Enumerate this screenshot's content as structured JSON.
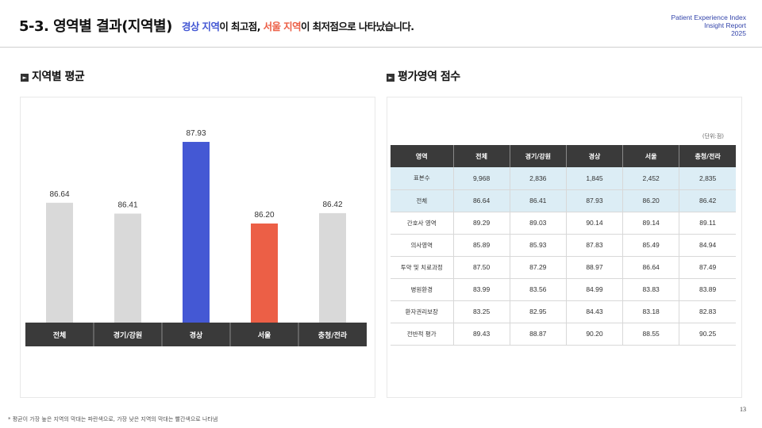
{
  "header": {
    "title": "5-3. 영역별 결과(지역별)",
    "subtitle_part1": "경상 지역",
    "subtitle_part2": "이 최고점, ",
    "subtitle_part3": "서울 지역",
    "subtitle_part4": "이 최저점으로 나타났습니다.",
    "report_line1": "Patient Experience Index",
    "report_line2": "Insight Report",
    "report_line3": "2025"
  },
  "left_section": {
    "title": "지역별 평균"
  },
  "right_section": {
    "title": "평가영역 점수",
    "unit": "(단위:점)"
  },
  "colors": {
    "bar_default": "#d9d9d9",
    "bar_highest": "#4458d4",
    "bar_lowest": "#ec5f46",
    "label_bg": "#3a3a3a",
    "highlight_row": "#dcedf5"
  },
  "chart_data": {
    "type": "bar",
    "categories": [
      "전체",
      "경기/강원",
      "경상",
      "서울",
      "충청/전라"
    ],
    "values": [
      86.64,
      86.41,
      87.93,
      86.2,
      86.42
    ],
    "data_labels": [
      "86.64",
      "86.41",
      "87.93",
      "86.20",
      "86.42"
    ],
    "highlight": {
      "highest": "경상",
      "lowest": "서울"
    },
    "title": "",
    "xlabel": "",
    "ylabel": "",
    "ylim": [
      84.1,
      88.3
    ],
    "grid": false,
    "legend": "none"
  },
  "table": {
    "headers": [
      "영역",
      "전체",
      "경기/강원",
      "경상",
      "서울",
      "충청/전라"
    ],
    "rows": [
      {
        "label": "표본수",
        "cells": [
          "9,968",
          "2,836",
          "1,845",
          "2,452",
          "2,835"
        ],
        "highlight": true
      },
      {
        "label": "전체",
        "cells": [
          "86.64",
          "86.41",
          "87.93",
          "86.20",
          "86.42"
        ],
        "highlight": true
      },
      {
        "label": "간호사 영역",
        "cells": [
          "89.29",
          "89.03",
          "90.14",
          "89.14",
          "89.11"
        ]
      },
      {
        "label": "의사영역",
        "cells": [
          "85.89",
          "85.93",
          "87.83",
          "85.49",
          "84.94"
        ]
      },
      {
        "label": "투약 및 치료과정",
        "cells": [
          "87.50",
          "87.29",
          "88.97",
          "86.64",
          "87.49"
        ]
      },
      {
        "label": "병원환경",
        "cells": [
          "83.99",
          "83.56",
          "84.99",
          "83.83",
          "83.89"
        ]
      },
      {
        "label": "환자권리보장",
        "cells": [
          "83.25",
          "82.95",
          "84.43",
          "83.18",
          "82.83"
        ]
      },
      {
        "label": "전반적 평가",
        "cells": [
          "89.43",
          "88.87",
          "90.20",
          "88.55",
          "90.25"
        ]
      }
    ]
  },
  "footnote": "* 평균이 가장 높은 지역의 막대는 파란색으로, 가장 낮은 지역의 막대는 빨간색으로 나타냄",
  "page_number": "13"
}
